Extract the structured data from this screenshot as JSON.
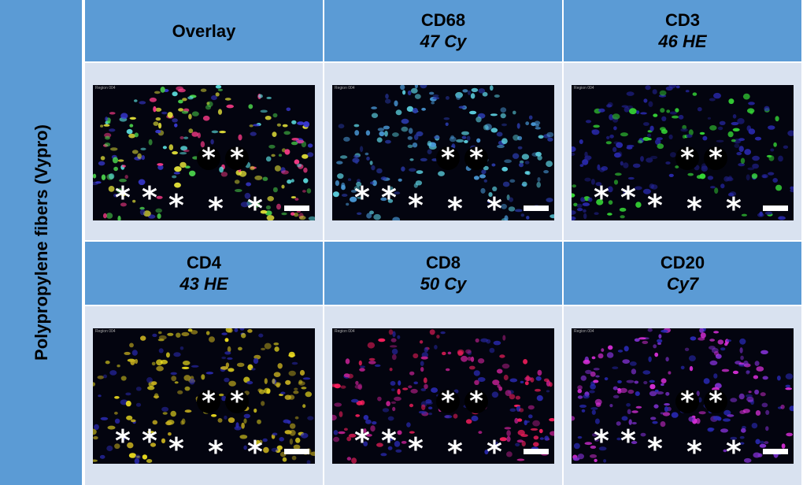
{
  "row_label": "Polypropylene fibers (Vypro)",
  "panels": [
    {
      "title": "Overlay",
      "subtitle": "",
      "region": "Region 004",
      "colors": [
        "#e8e63a",
        "#5fe6e6",
        "#4dd94d",
        "#ff3c8a",
        "#3a3ad6"
      ]
    },
    {
      "title": "CD68",
      "subtitle": "47 Cy",
      "region": "Region 004",
      "colors": [
        "#5fd6e6",
        "#4a9ad8",
        "#2a3aa8"
      ]
    },
    {
      "title": "CD3",
      "subtitle": "46 HE",
      "region": "Region 004",
      "colors": [
        "#38e038",
        "#2a2ab0",
        "#1e1e80"
      ]
    },
    {
      "title": "CD4",
      "subtitle": "43 HE",
      "region": "Region 004",
      "colors": [
        "#f0e020",
        "#c8b020",
        "#2a2ab0"
      ]
    },
    {
      "title": "CD8",
      "subtitle": "50 Cy",
      "region": "Region 004",
      "colors": [
        "#ff2060",
        "#c02090",
        "#2a2ab0"
      ]
    },
    {
      "title": "CD20",
      "subtitle": "Cy7",
      "region": "Region 004",
      "colors": [
        "#e030e0",
        "#8030d0",
        "#2a2ab8"
      ]
    }
  ],
  "marker": "*"
}
